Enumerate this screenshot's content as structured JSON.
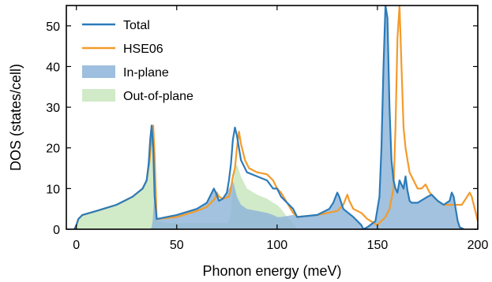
{
  "chart_data": {
    "type": "area",
    "xlabel": "Phonon energy (meV)",
    "ylabel": "DOS (states/cell)",
    "xlim": [
      -5,
      200
    ],
    "ylim": [
      0,
      55
    ],
    "xticks": [
      0,
      50,
      100,
      150,
      200
    ],
    "yticks": [
      0,
      10,
      20,
      30,
      40,
      50
    ],
    "legend_position": "top-left",
    "colors": {
      "total": "#2b7bba",
      "hse06": "#f39b2b",
      "inplane": "#8db4d9",
      "outofplane": "#cce8c2"
    },
    "series": [
      {
        "name": "Total",
        "kind": "line",
        "x": [
          -1,
          0,
          1,
          3,
          10,
          20,
          28,
          33,
          35,
          36,
          36.8,
          37.5,
          38.3,
          39,
          40,
          50,
          60,
          65,
          67,
          68.5,
          69.5,
          71,
          73,
          75,
          76,
          77,
          78,
          79,
          80,
          82,
          85,
          90,
          95,
          98,
          100,
          102,
          108,
          110,
          120,
          126,
          128,
          130,
          131,
          133,
          138,
          142,
          143,
          145,
          149,
          151,
          152,
          153,
          154,
          155,
          156,
          157,
          158,
          159,
          160,
          161,
          162,
          163,
          164,
          165,
          166,
          167,
          170,
          175,
          177,
          180,
          183,
          186,
          187,
          188,
          189,
          190,
          191,
          193
        ],
        "values": [
          0,
          1,
          2.5,
          3.5,
          4.5,
          6,
          8,
          10,
          12,
          16,
          22,
          25.5,
          20,
          8,
          2.5,
          3.5,
          5,
          6.5,
          8.5,
          10,
          9,
          7,
          7.5,
          9,
          12,
          16,
          22,
          25,
          23,
          17,
          14,
          13,
          12,
          10,
          10,
          8,
          5,
          3,
          3.5,
          5,
          6.5,
          9,
          8,
          5,
          3,
          1,
          0,
          0.5,
          2,
          8,
          20,
          40,
          55,
          52,
          30,
          17,
          12,
          10,
          9,
          12,
          11,
          10,
          13,
          9.5,
          7,
          6.5,
          6.5,
          8,
          8.5,
          7,
          6,
          7,
          9,
          8,
          5,
          2,
          0.5,
          0
        ]
      },
      {
        "name": "HSE06",
        "kind": "line",
        "x": [
          -1,
          0,
          1,
          3,
          10,
          20,
          28,
          33,
          35,
          36.5,
          37.5,
          38.3,
          39,
          40,
          50,
          60,
          65,
          69,
          70,
          71,
          73,
          76,
          77,
          78,
          79,
          80,
          81,
          82,
          84,
          86,
          90,
          95,
          98,
          100,
          102,
          108,
          110,
          120,
          130,
          133,
          135,
          136,
          138,
          142,
          145,
          150,
          154,
          156,
          158,
          159,
          160,
          161,
          162,
          163,
          164,
          165,
          166,
          168,
          170,
          172,
          174,
          176,
          180,
          183,
          186,
          189,
          192,
          194,
          196,
          197,
          198,
          199,
          200,
          201,
          202
        ],
        "values": [
          0,
          1,
          2.5,
          3.5,
          4.5,
          6,
          8,
          10,
          12,
          17,
          22,
          25.5,
          18,
          2.5,
          3,
          4.5,
          5.5,
          7.5,
          9,
          8,
          7.5,
          8,
          10,
          13,
          15,
          20,
          24,
          21,
          17,
          15,
          14,
          13.5,
          12,
          10,
          9,
          4,
          3,
          3.5,
          4.5,
          6,
          8.5,
          7,
          5,
          4,
          2.5,
          1,
          3,
          5,
          10,
          25,
          47,
          55,
          40,
          25,
          20,
          17,
          14,
          12,
          10,
          10,
          11,
          9,
          7,
          6,
          6,
          6,
          6,
          7.5,
          9,
          8,
          6,
          4,
          2,
          1,
          0
        ]
      },
      {
        "name": "In-plane",
        "kind": "area",
        "x": [
          35,
          36,
          37,
          37.5,
          38,
          38.5,
          39,
          40,
          50,
          60,
          65,
          67,
          68.5,
          69.5,
          71,
          73,
          75,
          76,
          77,
          78,
          79,
          80,
          82,
          85,
          90,
          95,
          98,
          100,
          102,
          108,
          110,
          120,
          126,
          128,
          130,
          131,
          133,
          138,
          142,
          143,
          145,
          149,
          151,
          152,
          153,
          154,
          155,
          156,
          157,
          158,
          159,
          160,
          161,
          162,
          163,
          164,
          165,
          166,
          167,
          170,
          175,
          177,
          180,
          183,
          186,
          187,
          188,
          189,
          190,
          191,
          193
        ],
        "values": [
          0,
          0,
          0.2,
          0.5,
          2,
          6,
          8,
          2.5,
          3.5,
          5,
          6.5,
          8.5,
          10,
          9,
          7,
          7.5,
          9,
          10,
          11,
          12,
          10,
          8,
          6,
          5,
          4.5,
          4,
          3.5,
          3,
          3,
          3.5,
          3,
          3.5,
          5,
          6.5,
          9,
          8,
          5,
          3,
          1,
          0,
          0.5,
          2,
          8,
          20,
          40,
          55,
          52,
          30,
          17,
          12,
          10,
          9,
          12,
          11,
          10,
          13,
          9.5,
          7,
          6.5,
          6.5,
          8,
          8.5,
          7,
          6,
          7,
          9,
          8,
          5,
          2,
          0.5,
          0
        ]
      },
      {
        "name": "Out-of-plane",
        "kind": "area",
        "x": [
          -1,
          0,
          1,
          3,
          10,
          20,
          28,
          33,
          35,
          36,
          36.8,
          37.5,
          38.3,
          39,
          40,
          45,
          50,
          60,
          70,
          75,
          76,
          77,
          78,
          79,
          80,
          82,
          85,
          90,
          95,
          98,
          100,
          102,
          105,
          108,
          110
        ],
        "values": [
          0,
          1,
          2.5,
          3.5,
          4.5,
          6,
          8,
          10,
          12,
          16,
          22,
          25,
          14,
          4,
          2,
          1.5,
          1.5,
          1.5,
          1.5,
          1.5,
          2,
          4,
          10,
          15,
          16,
          13,
          10,
          8.5,
          7.5,
          6.5,
          6,
          5,
          3,
          1.5,
          0
        ]
      }
    ]
  }
}
